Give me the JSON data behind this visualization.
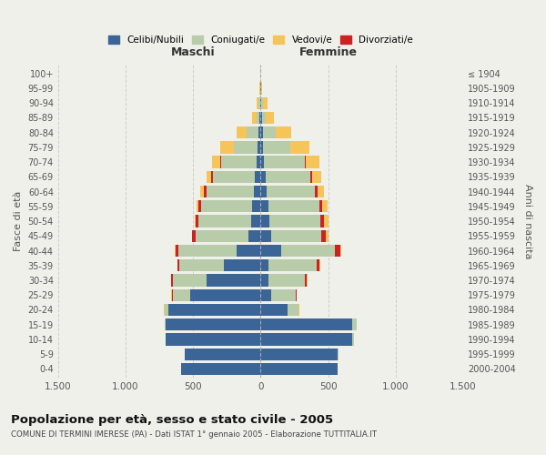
{
  "age_groups": [
    "0-4",
    "5-9",
    "10-14",
    "15-19",
    "20-24",
    "25-29",
    "30-34",
    "35-39",
    "40-44",
    "45-49",
    "50-54",
    "55-59",
    "60-64",
    "65-69",
    "70-74",
    "75-79",
    "80-84",
    "85-89",
    "90-94",
    "95-99",
    "100+"
  ],
  "birth_years": [
    "2000-2004",
    "1995-1999",
    "1990-1994",
    "1985-1989",
    "1980-1984",
    "1975-1979",
    "1970-1974",
    "1965-1969",
    "1960-1964",
    "1955-1959",
    "1950-1954",
    "1945-1949",
    "1940-1944",
    "1935-1939",
    "1930-1934",
    "1925-1929",
    "1920-1924",
    "1915-1919",
    "1910-1914",
    "1905-1909",
    "≤ 1904"
  ],
  "maschi": {
    "celibi": [
      590,
      560,
      700,
      700,
      680,
      520,
      400,
      270,
      180,
      90,
      70,
      60,
      50,
      40,
      30,
      20,
      15,
      10,
      5,
      2,
      0
    ],
    "coniugati": [
      0,
      0,
      5,
      10,
      30,
      130,
      250,
      330,
      430,
      390,
      390,
      380,
      350,
      310,
      260,
      180,
      90,
      20,
      10,
      3,
      0
    ],
    "vedovi": [
      0,
      0,
      0,
      0,
      2,
      5,
      3,
      3,
      5,
      5,
      10,
      15,
      25,
      35,
      60,
      100,
      70,
      30,
      15,
      3,
      0
    ],
    "divorziati": [
      0,
      0,
      0,
      0,
      2,
      5,
      10,
      15,
      20,
      25,
      20,
      20,
      20,
      15,
      10,
      0,
      0,
      0,
      0,
      0,
      0
    ]
  },
  "femmine": {
    "nubili": [
      570,
      570,
      680,
      680,
      200,
      80,
      60,
      55,
      150,
      80,
      65,
      55,
      45,
      35,
      25,
      20,
      15,
      10,
      5,
      2,
      0
    ],
    "coniugate": [
      0,
      5,
      10,
      30,
      80,
      180,
      270,
      360,
      400,
      370,
      380,
      380,
      360,
      330,
      300,
      200,
      100,
      30,
      15,
      3,
      0
    ],
    "vedove": [
      0,
      0,
      0,
      0,
      5,
      5,
      5,
      5,
      10,
      20,
      30,
      40,
      50,
      70,
      100,
      140,
      110,
      60,
      30,
      5,
      0
    ],
    "divorziate": [
      0,
      0,
      0,
      0,
      2,
      5,
      10,
      20,
      40,
      30,
      25,
      20,
      15,
      15,
      10,
      0,
      0,
      0,
      0,
      0,
      0
    ]
  },
  "colors": {
    "celibi_nubili": "#3a6596",
    "coniugati": "#b8ccaa",
    "vedovi": "#f5c55a",
    "divorziati": "#cc2222"
  },
  "xlim": 1500,
  "title": "Popolazione per età, sesso e stato civile - 2005",
  "subtitle": "COMUNE DI TERMINI IMERESE (PA) - Dati ISTAT 1° gennaio 2005 - Elaborazione TUTTITALIA.IT",
  "ylabel_left": "Fasce di età",
  "ylabel_right": "Anni di nascita",
  "xlabel_maschi": "Maschi",
  "xlabel_femmine": "Femmine",
  "legend_labels": [
    "Celibi/Nubili",
    "Coniugati/e",
    "Vedovi/e",
    "Divorziati/e"
  ],
  "background_color": "#f0f0eb",
  "grid_color": "#cccccc",
  "label_color_maschi": "#333333",
  "label_color_femmine": "#333333"
}
